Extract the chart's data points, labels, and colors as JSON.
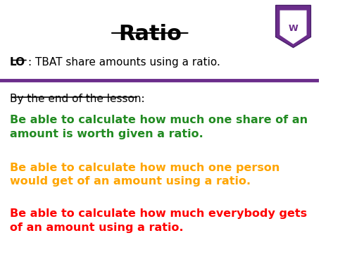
{
  "title": "Ratio",
  "lo_bold": "LO",
  "lo_text": ": TBAT share amounts using a ratio.",
  "section_label": "By the end of the lesson:",
  "bullet1": "Be able to calculate how much one share of an\namount is worth given a ratio.",
  "bullet1_color": "#228B22",
  "bullet2": "Be able to calculate how much one person\nwould get of an amount using a ratio.",
  "bullet2_color": "#FFA500",
  "bullet3": "Be able to calculate how much everybody gets\nof an amount using a ratio.",
  "bullet3_color": "#FF0000",
  "separator_color": "#6B2D8B",
  "bg_color": "#FFFFFF",
  "title_color": "#000000",
  "lo_color": "#000000",
  "section_color": "#000000"
}
